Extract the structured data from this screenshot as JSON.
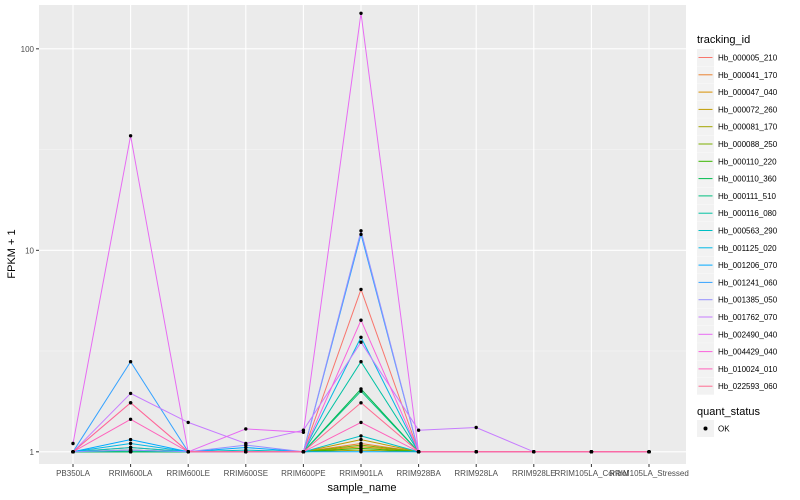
{
  "chart_data": {
    "type": "line",
    "y_scale": "log10",
    "ylim": [
      0.87,
      165
    ],
    "xlabel": "sample_name",
    "ylabel": "FPKM + 1",
    "y_ticks": [
      1,
      10,
      100
    ],
    "y_tick_labels": [
      "1",
      "10",
      "100"
    ],
    "categories": [
      "PB350LA",
      "RRIM600LA",
      "RRIM600LE",
      "RRIM600SE",
      "RRIM600PE",
      "RRIM901LA",
      "RRIM928BA",
      "RRIM928LA",
      "RRIM928LE",
      "RRIM105LA_Control",
      "RRIM105LA_Stressed"
    ],
    "grid": true,
    "legend_position": "right",
    "legend": {
      "tracking_title": "tracking_id",
      "status_title": "quant_status",
      "status_entries": [
        "OK"
      ]
    },
    "series": [
      {
        "name": "Hb_000005_210",
        "color": "#F8766D",
        "values": [
          1,
          1.02,
          1,
          1,
          1,
          6.4,
          1,
          1,
          1,
          1,
          1
        ]
      },
      {
        "name": "Hb_000041_170",
        "color": "#EA8331",
        "values": [
          1,
          1.05,
          1,
          1,
          1,
          1.1,
          1,
          1,
          1,
          1,
          1
        ]
      },
      {
        "name": "Hb_000047_040",
        "color": "#D89000",
        "values": [
          1,
          1.0,
          1,
          1,
          1,
          1.06,
          1,
          1,
          1,
          1,
          1
        ]
      },
      {
        "name": "Hb_000072_260",
        "color": "#C09B00",
        "values": [
          1,
          1.0,
          1,
          1,
          1,
          1.15,
          1,
          1,
          1,
          1,
          1
        ]
      },
      {
        "name": "Hb_000081_170",
        "color": "#A3A500",
        "values": [
          1,
          1.0,
          1,
          1,
          1,
          1.02,
          1,
          1,
          1,
          1,
          1
        ]
      },
      {
        "name": "Hb_000088_250",
        "color": "#7CAE00",
        "values": [
          1,
          1.0,
          1,
          1,
          1,
          1.08,
          1,
          1,
          1,
          1,
          1
        ]
      },
      {
        "name": "Hb_000110_220",
        "color": "#39B600",
        "values": [
          1,
          1.0,
          1,
          1,
          1,
          1.04,
          1,
          1,
          1,
          1,
          1
        ]
      },
      {
        "name": "Hb_000110_360",
        "color": "#00BB4E",
        "values": [
          1,
          1.0,
          1,
          1,
          1,
          2.05,
          1,
          1,
          1,
          1,
          1
        ]
      },
      {
        "name": "Hb_000111_510",
        "color": "#00BF7D",
        "values": [
          1,
          1.02,
          1,
          1,
          1,
          2.0,
          1,
          1,
          1,
          1,
          1
        ]
      },
      {
        "name": "Hb_000116_080",
        "color": "#00C1A3",
        "values": [
          1,
          1.0,
          1,
          1,
          1,
          2.8,
          1,
          1,
          1,
          1,
          1
        ]
      },
      {
        "name": "Hb_000563_290",
        "color": "#00BFC4",
        "values": [
          1,
          1.05,
          1,
          1.02,
          1,
          1.2,
          1,
          1,
          1,
          1,
          1
        ]
      },
      {
        "name": "Hb_001125_020",
        "color": "#00B8E5",
        "values": [
          1,
          1.1,
          1,
          1,
          1,
          3.7,
          1,
          1,
          1,
          1,
          1
        ]
      },
      {
        "name": "Hb_001206_070",
        "color": "#00A9FF",
        "values": [
          1,
          1.15,
          1,
          1.05,
          1,
          1.0,
          1,
          1,
          1,
          1,
          1
        ]
      },
      {
        "name": "Hb_001241_060",
        "color": "#35A2FF",
        "values": [
          1,
          2.8,
          1,
          1,
          1,
          12.0,
          1,
          1,
          1,
          1,
          1
        ]
      },
      {
        "name": "Hb_001385_050",
        "color": "#9590FF",
        "values": [
          1,
          1.02,
          1,
          1.08,
          1,
          12.5,
          1,
          1,
          1,
          1,
          1
        ]
      },
      {
        "name": "Hb_001762_070",
        "color": "#C77CFF",
        "values": [
          1,
          1.95,
          1.4,
          1.1,
          1.28,
          3.5,
          1.28,
          1.32,
          1,
          1,
          1
        ]
      },
      {
        "name": "Hb_002490_040",
        "color": "#E76BF3",
        "values": [
          1.1,
          37,
          1,
          1.3,
          1.25,
          150,
          1,
          1,
          1,
          1,
          1
        ]
      },
      {
        "name": "Hb_004429_040",
        "color": "#FA62DB",
        "values": [
          1,
          1.75,
          1,
          1,
          1,
          4.5,
          1,
          1,
          1,
          1,
          1
        ]
      },
      {
        "name": "Hb_010024_010",
        "color": "#FF62BC",
        "values": [
          1,
          1.45,
          1,
          1,
          1,
          1.4,
          1,
          1,
          1,
          1,
          1
        ]
      },
      {
        "name": "Hb_022593_060",
        "color": "#FF6C91",
        "values": [
          1,
          1.75,
          1,
          1,
          1,
          1.75,
          1,
          1,
          1,
          1,
          1
        ]
      }
    ]
  }
}
